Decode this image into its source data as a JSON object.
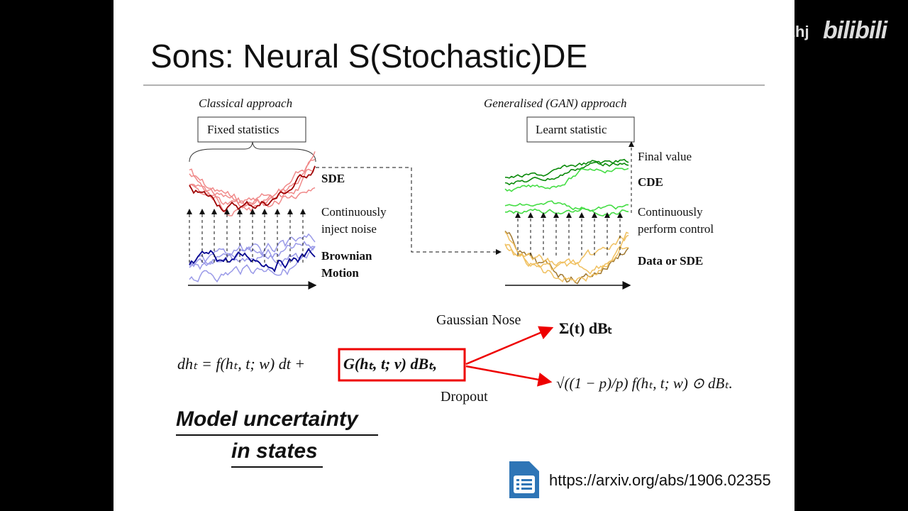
{
  "watermark": {
    "user": "zhj",
    "brand": "bilibili"
  },
  "slide": {
    "title": "Sons: Neural S(Stochastic)DE",
    "figure": {
      "left": {
        "caption": "Classical approach",
        "box": "Fixed statistics",
        "labels": [
          "SDE",
          "Continuously",
          "inject noise",
          "Brownian",
          "Motion"
        ]
      },
      "right": {
        "caption": "Generalised (GAN) approach",
        "box": "Learnt statistic",
        "labels": [
          "Final value",
          "CDE",
          "Continuously",
          "perform control",
          "Data or SDE"
        ]
      }
    },
    "equation": {
      "main": "dhₜ = f(hₜ, t; w) dt +",
      "boxed": "G(hₜ, t; v) dBₜ,",
      "gaussian_label": "Gaussian Nose",
      "gaussian_term": "Σ(t) dBₜ",
      "dropout_label": "Dropout",
      "dropout_term": "√((1 − p)/p) f(hₜ, t; w) ⊙ dBₜ."
    },
    "note": [
      "Model uncertainty",
      "in states"
    ],
    "link": "https://arxiv.org/abs/1906.02355"
  }
}
